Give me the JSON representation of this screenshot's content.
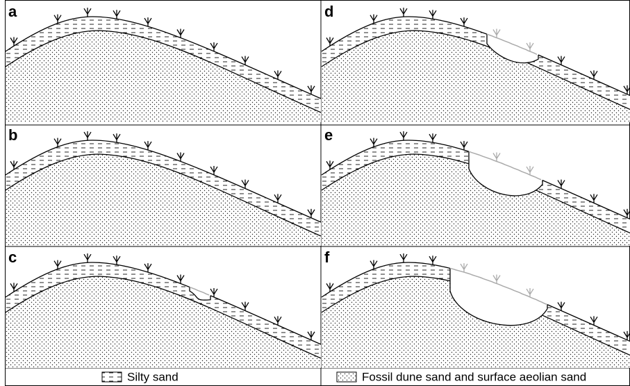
{
  "panels": [
    {
      "label": "a"
    },
    {
      "label": "b"
    },
    {
      "label": "c"
    },
    {
      "label": "d"
    },
    {
      "label": "e"
    },
    {
      "label": "f"
    }
  ],
  "legend": [
    {
      "label": "Silty sand"
    },
    {
      "label": "Fossil dune sand and surface aeolian sand"
    }
  ]
}
